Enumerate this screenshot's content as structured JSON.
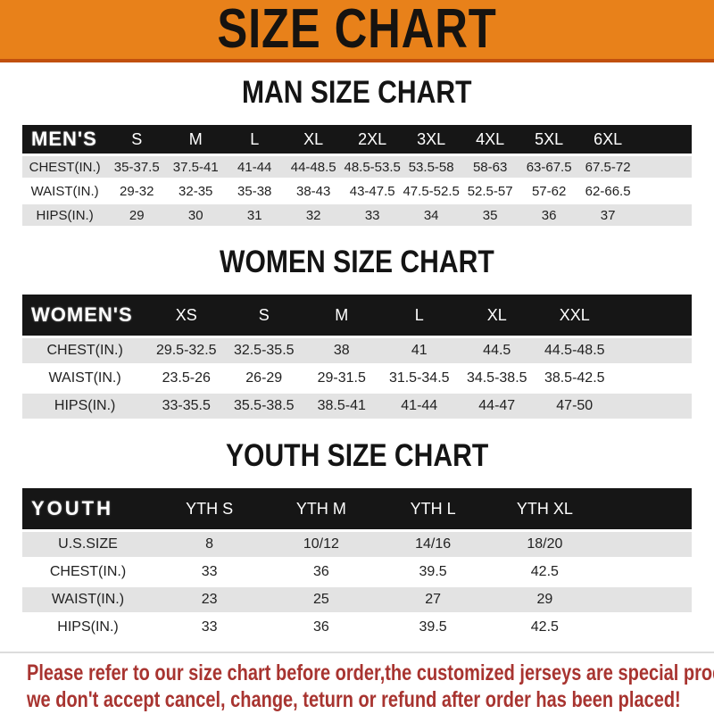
{
  "banner": {
    "title": "SIZE CHART",
    "background_color": "#E8811A",
    "underline_color": "#C1500E"
  },
  "colors": {
    "table_header_bg": "#161616",
    "table_header_text": "#FFFFFF",
    "row_stripe_gray": "#E3E3E3",
    "row_white": "#FFFFFF",
    "disclaimer_red": "#A83430"
  },
  "sections": [
    {
      "heading": "MAN SIZE CHART",
      "table": {
        "header_label": "MEN'S",
        "columns": [
          "S",
          "M",
          "L",
          "XL",
          "2XL",
          "3XL",
          "4XL",
          "5XL",
          "6XL"
        ],
        "rows": [
          {
            "label": "CHEST(IN.)",
            "values": [
              "35-37.5",
              "37.5-41",
              "41-44",
              "44-48.5",
              "48.5-53.5",
              "53.5-58",
              "58-63",
              "63-67.5",
              "67.5-72"
            ]
          },
          {
            "label": "WAIST(IN.)",
            "values": [
              "29-32",
              "32-35",
              "35-38",
              "38-43",
              "43-47.5",
              "47.5-52.5",
              "52.5-57",
              "57-62",
              "62-66.5"
            ]
          },
          {
            "label": "HIPS(IN.)",
            "values": [
              "29",
              "30",
              "31",
              "32",
              "33",
              "34",
              "35",
              "36",
              "37"
            ]
          }
        ]
      }
    },
    {
      "heading": "WOMEN SIZE CHART",
      "table": {
        "header_label": "WOMEN'S",
        "columns": [
          "XS",
          "S",
          "M",
          "L",
          "XL",
          "XXL"
        ],
        "rows": [
          {
            "label": "CHEST(IN.)",
            "values": [
              "29.5-32.5",
              "32.5-35.5",
              "38",
              "41",
              "44.5",
              "44.5-48.5"
            ]
          },
          {
            "label": "WAIST(IN.)",
            "values": [
              "23.5-26",
              "26-29",
              "29-31.5",
              "31.5-34.5",
              "34.5-38.5",
              "38.5-42.5"
            ]
          },
          {
            "label": "HIPS(IN.)",
            "values": [
              "33-35.5",
              "35.5-38.5",
              "38.5-41",
              "41-44",
              "44-47",
              "47-50"
            ]
          }
        ]
      }
    },
    {
      "heading": "YOUTH SIZE CHART",
      "table": {
        "header_label": "YOUTH",
        "columns": [
          "YTH S",
          "YTH M",
          "YTH L",
          "YTH XL"
        ],
        "rows": [
          {
            "label": "U.S.SIZE",
            "values": [
              "8",
              "10/12",
              "14/16",
              "18/20"
            ]
          },
          {
            "label": "CHEST(IN.)",
            "values": [
              "33",
              "36",
              "39.5",
              "42.5"
            ]
          },
          {
            "label": "WAIST(IN.)",
            "values": [
              "23",
              "25",
              "27",
              "29"
            ]
          },
          {
            "label": "HIPS(IN.)",
            "values": [
              "33",
              "36",
              "39.5",
              "42.5"
            ]
          }
        ]
      }
    }
  ],
  "disclaimer": {
    "lines": [
      "Please refer to our size chart before order,the customized jerseys are special products,",
      "we don't accept cancel, change, teturn or refund after order has been placed!"
    ]
  }
}
